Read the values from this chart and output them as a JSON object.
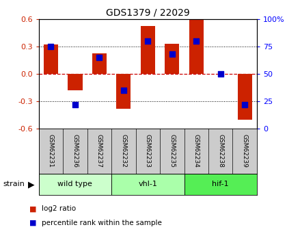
{
  "title": "GDS1379 / 22029",
  "samples": [
    "GSM62231",
    "GSM62236",
    "GSM62237",
    "GSM62232",
    "GSM62233",
    "GSM62235",
    "GSM62234",
    "GSM62238",
    "GSM62239"
  ],
  "log2_ratios": [
    0.32,
    -0.18,
    0.22,
    -0.38,
    0.52,
    0.33,
    0.6,
    0.0,
    -0.5
  ],
  "percentile_ranks": [
    0.75,
    0.22,
    0.65,
    0.35,
    0.8,
    0.68,
    0.8,
    0.5,
    0.22
  ],
  "groups": [
    {
      "name": "wild type",
      "start": 0,
      "end": 3,
      "color": "#ccffcc"
    },
    {
      "name": "vhl-1",
      "start": 3,
      "end": 6,
      "color": "#aaffaa"
    },
    {
      "name": "hif-1",
      "start": 6,
      "end": 9,
      "color": "#55ee55"
    }
  ],
  "ylim": [
    -0.6,
    0.6
  ],
  "y2lim": [
    0,
    100
  ],
  "yticks": [
    -0.6,
    -0.3,
    0.0,
    0.3,
    0.6
  ],
  "y2ticks": [
    0,
    25,
    50,
    75,
    100
  ],
  "bar_color": "#cc2200",
  "dot_color": "#0000cc",
  "bg_color": "#ffffff",
  "grid_color": "#000000",
  "zero_line_color": "#cc0000",
  "legend_log2": "log2 ratio",
  "legend_pct": "percentile rank within the sample",
  "strain_label": "strain",
  "bar_width": 0.6,
  "dot_size": 30,
  "sample_label_color": "#333333",
  "gray_box_color": "#cccccc"
}
